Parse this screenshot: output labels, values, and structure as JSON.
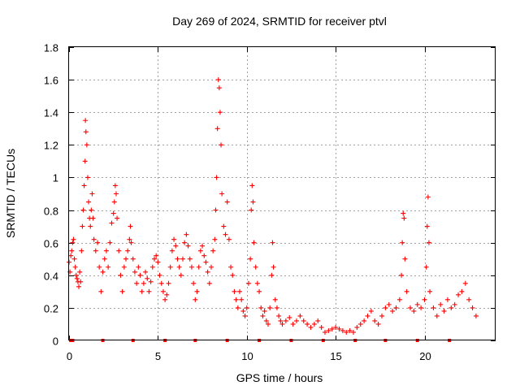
{
  "chart_data": {
    "type": "scatter",
    "title": "Day 269 of 2024, SRMTID for receiver ptvl",
    "xlabel": "GPS time / hours",
    "ylabel": "SRMTID / TECUs",
    "xlim": [
      0,
      24
    ],
    "ylim": [
      0,
      1.8
    ],
    "xticks": [
      0,
      5,
      10,
      15,
      20
    ],
    "xtick_labels": [
      "0",
      "5",
      "10",
      "15",
      "20"
    ],
    "yticks": [
      0,
      0.2,
      0.4,
      0.6,
      0.8,
      1.0,
      1.2,
      1.4,
      1.6,
      1.8
    ],
    "ytick_labels": [
      "0",
      "0.2",
      "0.4",
      "0.6",
      "0.8",
      "1",
      "1.2",
      "1.4",
      "1.6",
      "1.8"
    ],
    "grid": true,
    "marker": "plus",
    "color": "#ff0000",
    "series": [
      {
        "name": "SRMTID",
        "points": [
          [
            0.0,
            0.48
          ],
          [
            0.05,
            0.42
          ],
          [
            0.1,
            0.52
          ],
          [
            0.15,
            0.55
          ],
          [
            0.2,
            0.6
          ],
          [
            0.25,
            0.62
          ],
          [
            0.3,
            0.5
          ],
          [
            0.35,
            0.45
          ],
          [
            0.4,
            0.4
          ],
          [
            0.45,
            0.38
          ],
          [
            0.5,
            0.36
          ],
          [
            0.55,
            0.33
          ],
          [
            0.6,
            0.42
          ],
          [
            0.65,
            0.36
          ],
          [
            0.7,
            0.55
          ],
          [
            0.75,
            0.7
          ],
          [
            0.8,
            0.8
          ],
          [
            0.85,
            0.95
          ],
          [
            0.9,
            1.1
          ],
          [
            0.92,
            1.35
          ],
          [
            0.95,
            1.28
          ],
          [
            1.0,
            1.2
          ],
          [
            1.05,
            1.0
          ],
          [
            1.1,
            0.85
          ],
          [
            1.15,
            0.75
          ],
          [
            1.2,
            0.7
          ],
          [
            1.25,
            0.8
          ],
          [
            1.3,
            0.9
          ],
          [
            1.35,
            0.75
          ],
          [
            1.4,
            0.62
          ],
          [
            1.5,
            0.55
          ],
          [
            1.6,
            0.6
          ],
          [
            1.7,
            0.45
          ],
          [
            1.8,
            0.3
          ],
          [
            1.9,
            0.42
          ],
          [
            2.0,
            0.5
          ],
          [
            2.1,
            0.55
          ],
          [
            2.2,
            0.45
          ],
          [
            2.3,
            0.6
          ],
          [
            2.4,
            0.72
          ],
          [
            2.5,
            0.78
          ],
          [
            2.55,
            0.85
          ],
          [
            2.6,
            0.95
          ],
          [
            2.65,
            0.9
          ],
          [
            2.7,
            0.75
          ],
          [
            2.8,
            0.55
          ],
          [
            2.9,
            0.4
          ],
          [
            3.0,
            0.3
          ],
          [
            3.1,
            0.45
          ],
          [
            3.2,
            0.5
          ],
          [
            3.3,
            0.55
          ],
          [
            3.4,
            0.62
          ],
          [
            3.45,
            0.7
          ],
          [
            3.5,
            0.6
          ],
          [
            3.6,
            0.5
          ],
          [
            3.7,
            0.42
          ],
          [
            3.8,
            0.35
          ],
          [
            3.9,
            0.45
          ],
          [
            4.0,
            0.4
          ],
          [
            4.1,
            0.3
          ],
          [
            4.2,
            0.35
          ],
          [
            4.3,
            0.42
          ],
          [
            4.4,
            0.38
          ],
          [
            4.5,
            0.3
          ],
          [
            4.6,
            0.36
          ],
          [
            4.7,
            0.45
          ],
          [
            4.8,
            0.5
          ],
          [
            4.9,
            0.52
          ],
          [
            5.0,
            0.48
          ],
          [
            5.1,
            0.4
          ],
          [
            5.2,
            0.35
          ],
          [
            5.3,
            0.3
          ],
          [
            5.4,
            0.25
          ],
          [
            5.5,
            0.28
          ],
          [
            5.6,
            0.35
          ],
          [
            5.7,
            0.45
          ],
          [
            5.8,
            0.55
          ],
          [
            5.9,
            0.62
          ],
          [
            6.0,
            0.58
          ],
          [
            6.1,
            0.5
          ],
          [
            6.2,
            0.45
          ],
          [
            6.3,
            0.4
          ],
          [
            6.4,
            0.5
          ],
          [
            6.5,
            0.6
          ],
          [
            6.6,
            0.65
          ],
          [
            6.7,
            0.58
          ],
          [
            6.8,
            0.5
          ],
          [
            6.9,
            0.45
          ],
          [
            7.0,
            0.35
          ],
          [
            7.1,
            0.25
          ],
          [
            7.2,
            0.3
          ],
          [
            7.3,
            0.45
          ],
          [
            7.4,
            0.55
          ],
          [
            7.5,
            0.58
          ],
          [
            7.6,
            0.52
          ],
          [
            7.7,
            0.48
          ],
          [
            7.8,
            0.42
          ],
          [
            7.9,
            0.35
          ],
          [
            8.0,
            0.45
          ],
          [
            8.1,
            0.55
          ],
          [
            8.2,
            0.62
          ],
          [
            8.25,
            0.8
          ],
          [
            8.3,
            1.0
          ],
          [
            8.35,
            1.3
          ],
          [
            8.4,
            1.6
          ],
          [
            8.45,
            1.55
          ],
          [
            8.5,
            1.4
          ],
          [
            8.55,
            1.2
          ],
          [
            8.6,
            0.9
          ],
          [
            8.7,
            0.7
          ],
          [
            8.8,
            0.65
          ],
          [
            8.9,
            0.85
          ],
          [
            9.0,
            0.62
          ],
          [
            9.1,
            0.45
          ],
          [
            9.2,
            0.4
          ],
          [
            9.3,
            0.3
          ],
          [
            9.4,
            0.25
          ],
          [
            9.5,
            0.2
          ],
          [
            9.6,
            0.3
          ],
          [
            9.7,
            0.25
          ],
          [
            9.8,
            0.18
          ],
          [
            9.9,
            0.15
          ],
          [
            10.0,
            0.2
          ],
          [
            10.1,
            0.35
          ],
          [
            10.2,
            0.5
          ],
          [
            10.25,
            0.8
          ],
          [
            10.3,
            0.95
          ],
          [
            10.35,
            0.85
          ],
          [
            10.4,
            0.6
          ],
          [
            10.5,
            0.45
          ],
          [
            10.6,
            0.35
          ],
          [
            10.7,
            0.3
          ],
          [
            10.8,
            0.2
          ],
          [
            10.9,
            0.15
          ],
          [
            11.0,
            0.18
          ],
          [
            11.1,
            0.12
          ],
          [
            11.2,
            0.1
          ],
          [
            11.3,
            0.2
          ],
          [
            11.4,
            0.4
          ],
          [
            11.45,
            0.6
          ],
          [
            11.5,
            0.45
          ],
          [
            11.6,
            0.25
          ],
          [
            11.7,
            0.2
          ],
          [
            11.8,
            0.15
          ],
          [
            11.9,
            0.12
          ],
          [
            12.0,
            0.1
          ],
          [
            12.2,
            0.12
          ],
          [
            12.4,
            0.14
          ],
          [
            12.6,
            0.1
          ],
          [
            12.8,
            0.12
          ],
          [
            13.0,
            0.15
          ],
          [
            13.2,
            0.12
          ],
          [
            13.4,
            0.1
          ],
          [
            13.6,
            0.08
          ],
          [
            13.8,
            0.1
          ],
          [
            14.0,
            0.12
          ],
          [
            14.2,
            0.08
          ],
          [
            14.4,
            0.05
          ],
          [
            14.6,
            0.06
          ],
          [
            14.8,
            0.07
          ],
          [
            15.0,
            0.08
          ],
          [
            15.2,
            0.07
          ],
          [
            15.4,
            0.06
          ],
          [
            15.6,
            0.05
          ],
          [
            15.8,
            0.06
          ],
          [
            16.0,
            0.05
          ],
          [
            16.2,
            0.08
          ],
          [
            16.4,
            0.1
          ],
          [
            16.6,
            0.12
          ],
          [
            16.8,
            0.15
          ],
          [
            17.0,
            0.18
          ],
          [
            17.2,
            0.12
          ],
          [
            17.4,
            0.1
          ],
          [
            17.6,
            0.15
          ],
          [
            17.8,
            0.2
          ],
          [
            18.0,
            0.22
          ],
          [
            18.2,
            0.18
          ],
          [
            18.4,
            0.2
          ],
          [
            18.6,
            0.25
          ],
          [
            18.7,
            0.4
          ],
          [
            18.75,
            0.6
          ],
          [
            18.8,
            0.78
          ],
          [
            18.85,
            0.75
          ],
          [
            18.9,
            0.5
          ],
          [
            19.0,
            0.3
          ],
          [
            19.2,
            0.2
          ],
          [
            19.4,
            0.18
          ],
          [
            19.6,
            0.22
          ],
          [
            19.8,
            0.2
          ],
          [
            20.0,
            0.25
          ],
          [
            20.1,
            0.45
          ],
          [
            20.15,
            0.7
          ],
          [
            20.2,
            0.88
          ],
          [
            20.25,
            0.6
          ],
          [
            20.3,
            0.3
          ],
          [
            20.5,
            0.2
          ],
          [
            20.7,
            0.15
          ],
          [
            20.9,
            0.22
          ],
          [
            21.1,
            0.18
          ],
          [
            21.3,
            0.25
          ],
          [
            21.5,
            0.2
          ],
          [
            21.7,
            0.22
          ],
          [
            21.9,
            0.28
          ],
          [
            22.1,
            0.3
          ],
          [
            22.3,
            0.35
          ],
          [
            22.5,
            0.25
          ],
          [
            22.7,
            0.2
          ],
          [
            22.9,
            0.15
          ]
        ]
      }
    ],
    "baseline_marks": [
      0.1,
      0.2,
      1.9,
      3.6,
      5.4,
      7.1,
      8.9,
      10.7,
      12.5,
      14.3,
      16.1,
      17.8,
      19.6,
      21.4
    ]
  }
}
